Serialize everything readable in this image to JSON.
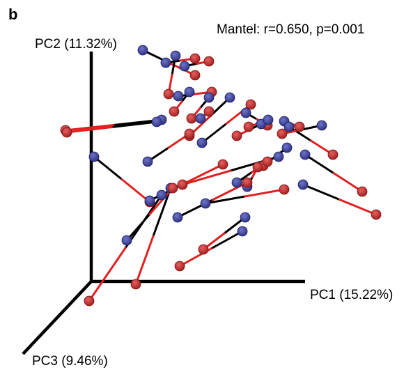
{
  "panel_label": "b",
  "chart_data": {
    "type": "scatter",
    "projection": "3d-ordination",
    "annotation": "Mantel: r=0.650, p=0.001",
    "axes": {
      "x": {
        "label": "PC1 (15.22%)"
      },
      "y": {
        "label": "PC2 (11.32%)"
      },
      "z": {
        "label": "PC3 (9.46%)"
      }
    },
    "colors": {
      "blue_point": "#3a3f9a",
      "red_point": "#cc2a2a",
      "blue_segment": "#000000",
      "red_segment": "#e02020",
      "axis": "#000000"
    },
    "pairs": [
      {
        "blue": [
          205,
          72
        ],
        "red": [
          280,
          108
        ]
      },
      {
        "blue": [
          238,
          90
        ],
        "red": [
          280,
          84
        ]
      },
      {
        "blue": [
          252,
          80
        ],
        "red": [
          242,
          135
        ]
      },
      {
        "blue": [
          265,
          95
        ],
        "red": [
          300,
          88
        ]
      },
      {
        "blue": [
          256,
          138
        ],
        "red": [
          304,
          132
        ]
      },
      {
        "blue": [
          272,
          132
        ],
        "red": [
          250,
          160
        ]
      },
      {
        "blue": [
          232,
          172
        ],
        "red": [
          94,
          187
        ]
      },
      {
        "blue": [
          225,
          175
        ],
        "red": [
          96,
          190
        ]
      },
      {
        "blue": [
          300,
          140
        ],
        "red": [
          275,
          170
        ]
      },
      {
        "blue": [
          288,
          170
        ],
        "red": [
          300,
          160
        ]
      },
      {
        "blue": [
          290,
          205
        ],
        "red": [
          360,
          150
        ]
      },
      {
        "blue": [
          330,
          140
        ],
        "red": [
          272,
          195
        ]
      },
      {
        "blue": [
          353,
          162
        ],
        "red": [
          384,
          180
        ]
      },
      {
        "blue": [
          375,
          178
        ],
        "red": [
          340,
          195
        ]
      },
      {
        "blue": [
          385,
          172
        ],
        "red": [
          357,
          182
        ]
      },
      {
        "blue": [
          408,
          174
        ],
        "red": [
          430,
          182
        ]
      },
      {
        "blue": [
          415,
          182
        ],
        "red": [
          478,
          222
        ]
      },
      {
        "blue": [
          462,
          180
        ],
        "red": [
          405,
          192
        ]
      },
      {
        "blue": [
          438,
          222
        ],
        "red": [
          520,
          275
        ]
      },
      {
        "blue": [
          435,
          265
        ],
        "red": [
          540,
          308
        ]
      },
      {
        "blue": [
          412,
          212
        ],
        "red": [
          378,
          238
        ]
      },
      {
        "blue": [
          400,
          225
        ],
        "red": [
          262,
          265
        ]
      },
      {
        "blue": [
          340,
          262
        ],
        "red": [
          384,
          232
        ]
      },
      {
        "blue": [
          355,
          268
        ],
        "red": [
          370,
          240
        ]
      },
      {
        "blue": [
          212,
          232
        ],
        "red": [
          272,
          192
        ]
      },
      {
        "blue": [
          135,
          225
        ],
        "red": [
          215,
          290
        ]
      },
      {
        "blue": [
          215,
          288
        ],
        "red": [
          320,
          236
        ]
      },
      {
        "blue": [
          245,
          270
        ],
        "red": [
          195,
          408
        ]
      },
      {
        "blue": [
          232,
          280
        ],
        "red": [
          128,
          432
        ]
      },
      {
        "blue": [
          255,
          312
        ],
        "red": [
          355,
          262
        ]
      },
      {
        "blue": [
          295,
          292
        ],
        "red": [
          408,
          272
        ]
      },
      {
        "blue": [
          182,
          345
        ],
        "red": [
          248,
          270
        ]
      },
      {
        "blue": [
          352,
          312
        ],
        "red": [
          292,
          358
        ]
      },
      {
        "blue": [
          348,
          332
        ],
        "red": [
          258,
          382
        ]
      }
    ]
  }
}
